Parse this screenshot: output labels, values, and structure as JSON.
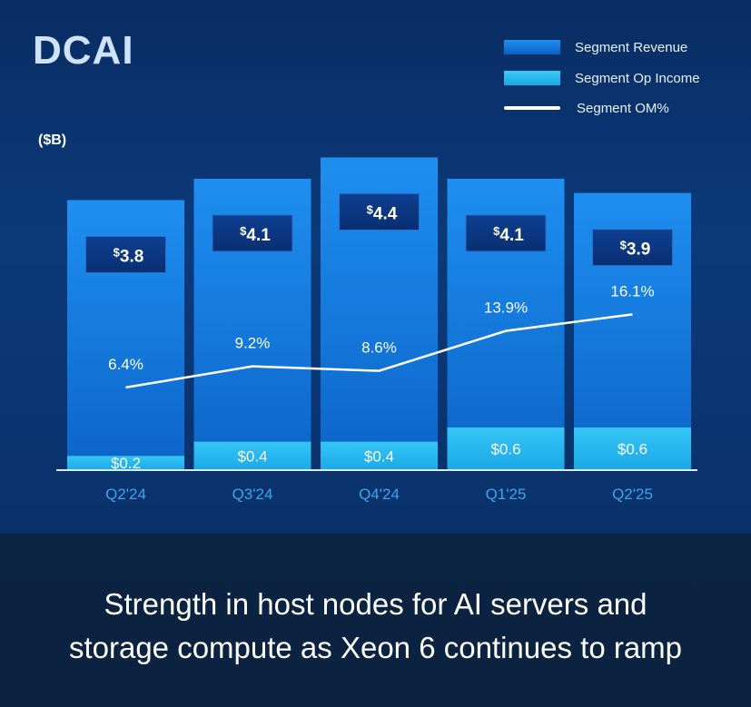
{
  "title": "DCAI",
  "unit": "($B)",
  "legend": [
    {
      "label": "Segment Revenue",
      "kind": "bar",
      "color": "#1273d6"
    },
    {
      "label": "Segment Op Income",
      "kind": "bar",
      "color": "#22b7ef"
    },
    {
      "label": "Segment OM%",
      "kind": "line",
      "color": "#ffffff"
    }
  ],
  "chart_data": {
    "type": "bar",
    "categories": [
      "Q2'24",
      "Q3'24",
      "Q4'24",
      "Q1'25",
      "Q2'25"
    ],
    "series": [
      {
        "name": "Segment Revenue",
        "values": [
          3.8,
          4.1,
          4.4,
          4.1,
          3.9
        ],
        "labels": [
          "3.8",
          "4.1",
          "4.4",
          "4.1",
          "3.9"
        ],
        "color": "#1273d6"
      },
      {
        "name": "Segment Op Income",
        "values": [
          0.2,
          0.4,
          0.4,
          0.6,
          0.6
        ],
        "labels": [
          "$0.2",
          "$0.4",
          "$0.4",
          "$0.6",
          "$0.6"
        ],
        "color": "#22b7ef"
      },
      {
        "name": "Segment OM%",
        "type": "line",
        "values": [
          6.4,
          9.2,
          8.6,
          13.9,
          16.1
        ],
        "labels": [
          "6.4%",
          "9.2%",
          "8.6%",
          "13.9%",
          "16.1%"
        ],
        "color": "#ffffff"
      }
    ],
    "currency_symbol": "$",
    "grid": false,
    "legend_position": "top-right"
  },
  "footer": {
    "line1": "Strength in host nodes for AI servers and",
    "line2": "storage compute as Xeon 6 continues to ramp"
  }
}
